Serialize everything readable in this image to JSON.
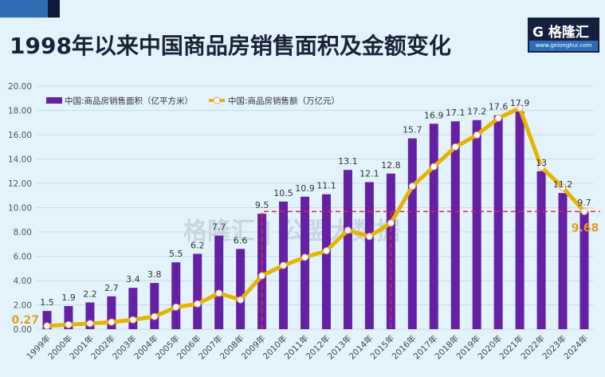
{
  "title": "1998年以来中国商品房销售面积及金额变化",
  "logo": {
    "name": "G 格隆汇",
    "url": "www.gelonghui.com"
  },
  "watermark": "格隆汇 | 公盟大数据",
  "colors": {
    "bar": "#6520a6",
    "line": "#e8b400",
    "highlight": "#e0a020",
    "dashed": "#e8262a"
  },
  "chart_data": {
    "type": "bar+line",
    "title": "1998年以来中国商品房销售面积及金额变化",
    "legend_position": "top-left",
    "grid": true,
    "ylim": [
      0,
      20
    ],
    "yticks": [
      "0.00",
      "2.00",
      "4.00",
      "6.00",
      "8.00",
      "10.00",
      "12.00",
      "14.00",
      "16.00",
      "18.00",
      "20.00"
    ],
    "categories": [
      "1999年",
      "2000年",
      "2001年",
      "2002年",
      "2003年",
      "2004年",
      "2005年",
      "2006年",
      "2007年",
      "2008年",
      "2009年",
      "2010年",
      "2011年",
      "2012年",
      "2013年",
      "2014年",
      "2015年",
      "2016年",
      "2017年",
      "2018年",
      "2019年",
      "2020年",
      "2021年",
      "2022年",
      "2023年",
      "2024年"
    ],
    "series": [
      {
        "name": "中国:商品房销售面积（亿平方米）",
        "type": "bar",
        "values": [
          1.5,
          1.9,
          2.2,
          2.7,
          3.4,
          3.8,
          5.5,
          6.2,
          7.7,
          6.6,
          9.5,
          10.5,
          10.9,
          11.1,
          13.1,
          12.1,
          12.8,
          15.7,
          16.9,
          17.1,
          17.2,
          17.6,
          17.9,
          13.0,
          11.2,
          9.7
        ]
      },
      {
        "name": "中国:商品房销售额（万亿元）",
        "type": "line",
        "values": [
          0.27,
          0.37,
          0.47,
          0.58,
          0.77,
          1.04,
          1.81,
          2.08,
          2.96,
          2.41,
          4.4,
          5.25,
          5.91,
          6.45,
          8.14,
          7.63,
          8.73,
          11.76,
          13.37,
          14.99,
          15.97,
          17.36,
          18.19,
          13.33,
          11.66,
          9.68
        ]
      }
    ],
    "annotations": {
      "first_line_value": "0.27",
      "last_line_value": "9.68"
    }
  }
}
